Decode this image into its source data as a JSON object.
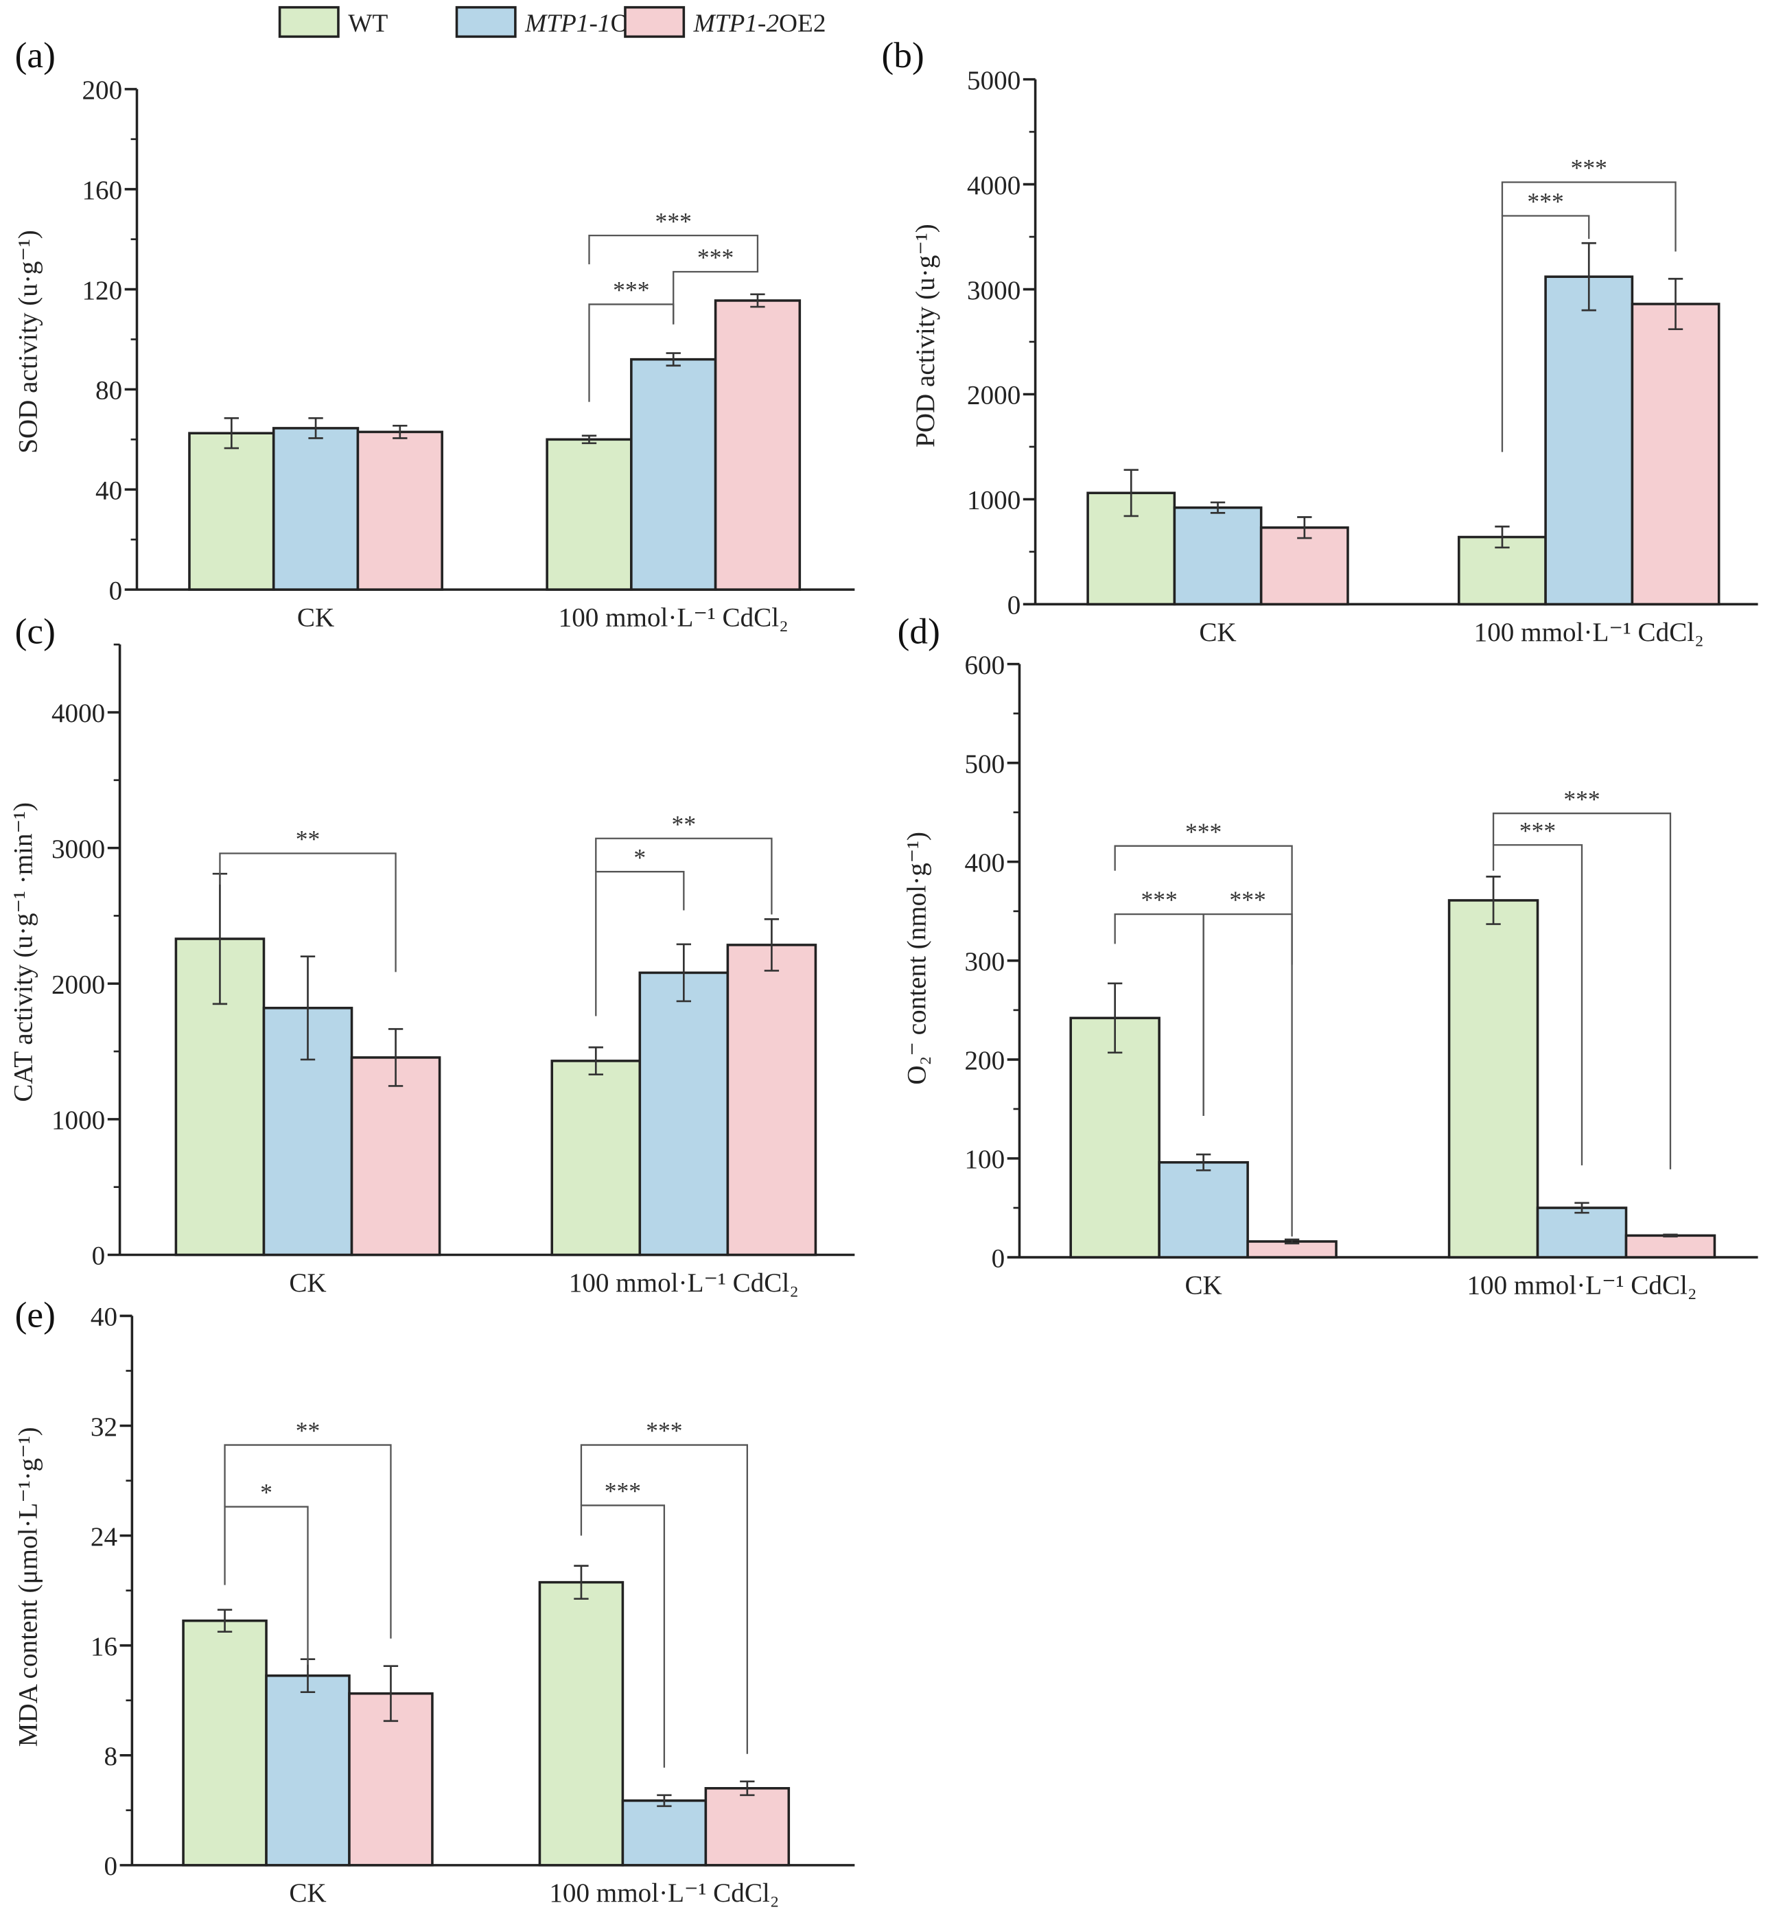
{
  "legend": [
    {
      "label_italic": "MTP1-",
      "label": "WT",
      "color": "#d9ecc8"
    },
    {
      "label_italic": "MTP1-1",
      "label": "OE3",
      "color": "#b6d6e8"
    },
    {
      "label_italic": "MTP1-2",
      "label": "OE2",
      "color": "#f5cfd2"
    }
  ],
  "chart_data": [
    {
      "panel": "(a)",
      "type": "bar",
      "categories": [
        "CK",
        "100 mmol·L⁻¹ CdCl₂"
      ],
      "ylabel": "SOD activity (u·g⁻¹)",
      "ylim": [
        0,
        200
      ],
      "yticks": [
        0,
        40,
        80,
        120,
        160,
        200
      ],
      "minor_step": 20,
      "series": [
        {
          "name": "WT",
          "values": [
            62.5,
            60
          ],
          "errors": [
            6,
            1.5
          ]
        },
        {
          "name": "MTP1-1OE3",
          "values": [
            64.5,
            92
          ],
          "errors": [
            4,
            2.5
          ]
        },
        {
          "name": "MTP1-2OE2",
          "values": [
            63,
            115.5
          ],
          "errors": [
            2.5,
            2.5
          ]
        }
      ],
      "significance": [
        {
          "group": 1,
          "from": 0,
          "to": 1,
          "level": 114,
          "left_end": 75,
          "right_end": 106,
          "label": "***"
        },
        {
          "group": 1,
          "from": 1,
          "to": 2,
          "level": 127,
          "left_end": 106,
          "right_end": 131,
          "label": "***"
        },
        {
          "group": 1,
          "from": 0,
          "to": 2,
          "level": 141.5,
          "left_end": 130,
          "right_end": 131,
          "label": "***"
        }
      ]
    },
    {
      "panel": "(b)",
      "type": "bar",
      "categories": [
        "CK",
        "100 mmol·L⁻¹ CdCl₂"
      ],
      "ylabel": "POD activity (u·g⁻¹)",
      "ylim": [
        0,
        5000
      ],
      "yticks": [
        0,
        1000,
        2000,
        3000,
        4000,
        5000
      ],
      "minor_step": 500,
      "series": [
        {
          "name": "WT",
          "values": [
            1060,
            640
          ],
          "errors": [
            220,
            100
          ]
        },
        {
          "name": "MTP1-1OE3",
          "values": [
            920,
            3120
          ],
          "errors": [
            50,
            320
          ]
        },
        {
          "name": "MTP1-2OE2",
          "values": [
            730,
            2860
          ],
          "errors": [
            100,
            240
          ]
        }
      ],
      "significance": [
        {
          "group": 1,
          "from": 0,
          "to": 1,
          "level": 3700,
          "left_end": 1450,
          "right_end": 3480,
          "label": "***"
        },
        {
          "group": 1,
          "from": 0,
          "to": 2,
          "level": 4020,
          "left_end": 3700,
          "right_end": 3360,
          "label": "***"
        }
      ]
    },
    {
      "panel": "(c)",
      "type": "bar",
      "categories": [
        "CK",
        "100 mmol·L⁻¹ CdCl₂"
      ],
      "ylabel": "CAT activity (u·g⁻¹ ·min⁻¹)",
      "ylim": [
        0,
        4500
      ],
      "yticks": [
        0,
        1000,
        2000,
        3000,
        4000
      ],
      "minor_step": 500,
      "series": [
        {
          "name": "WT",
          "values": [
            2330,
            1430
          ],
          "errors": [
            480,
            100
          ]
        },
        {
          "name": "MTP1-1OE3",
          "values": [
            1820,
            2080
          ],
          "errors": [
            380,
            210
          ]
        },
        {
          "name": "MTP1-2OE2",
          "values": [
            1455,
            2285
          ],
          "errors": [
            210,
            190
          ]
        }
      ],
      "significance": [
        {
          "group": 0,
          "from": 0,
          "to": 2,
          "level": 2960,
          "left_end": 2730,
          "right_end": 2085,
          "label": "**"
        },
        {
          "group": 1,
          "from": 0,
          "to": 1,
          "level": 2825,
          "left_end": 1760,
          "right_end": 2540,
          "label": "*"
        },
        {
          "group": 1,
          "from": 0,
          "to": 2,
          "level": 3070,
          "left_end": 2825,
          "right_end": 2510,
          "label": "**"
        }
      ]
    },
    {
      "panel": "(d)",
      "type": "bar",
      "categories": [
        "CK",
        "100 mmol·L⁻¹ CdCl₂"
      ],
      "ylabel": "O₂⁻ content (nmol·g⁻¹)",
      "ylim": [
        0,
        600
      ],
      "yticks": [
        0,
        100,
        200,
        300,
        400,
        500,
        600
      ],
      "minor_step": 50,
      "series": [
        {
          "name": "WT",
          "values": [
            242,
            361
          ],
          "errors": [
            35,
            24
          ]
        },
        {
          "name": "MTP1-1OE3",
          "values": [
            96,
            50
          ],
          "errors": [
            8,
            5
          ]
        },
        {
          "name": "MTP1-2OE2",
          "values": [
            16,
            22
          ],
          "errors": [
            2,
            1
          ]
        }
      ],
      "significance": [
        {
          "group": 0,
          "from": 0,
          "to": 1,
          "level": 347,
          "left_end": 317,
          "right_end": 143,
          "label": "***"
        },
        {
          "group": 0,
          "from": 1,
          "to": 2,
          "level": 347,
          "left_end": 143,
          "right_end": 21,
          "label": "***"
        },
        {
          "group": 0,
          "from": 0,
          "to": 2,
          "level": 416,
          "left_end": 391,
          "right_end": 296,
          "label": "***"
        },
        {
          "group": 1,
          "from": 0,
          "to": 1,
          "level": 417,
          "left_end": 391,
          "right_end": 93,
          "label": "***"
        },
        {
          "group": 1,
          "from": 0,
          "to": 2,
          "level": 449,
          "left_end": 417,
          "right_end": 89,
          "label": "***"
        }
      ]
    },
    {
      "panel": "(e)",
      "type": "bar",
      "categories": [
        "CK",
        "100 mmol·L⁻¹ CdCl₂"
      ],
      "ylabel": "MDA content (μmol·L⁻¹·g⁻¹)",
      "ylim": [
        0,
        40
      ],
      "yticks": [
        0,
        8,
        16,
        24,
        32,
        40
      ],
      "minor_step": 4,
      "series": [
        {
          "name": "WT",
          "values": [
            17.8,
            20.6
          ],
          "errors": [
            0.8,
            1.2
          ]
        },
        {
          "name": "MTP1-1OE3",
          "values": [
            13.8,
            4.7
          ],
          "errors": [
            1.2,
            0.4
          ]
        },
        {
          "name": "MTP1-2OE2",
          "values": [
            12.5,
            5.6
          ],
          "errors": [
            2,
            0.5
          ]
        }
      ],
      "significance": [
        {
          "group": 0,
          "from": 0,
          "to": 1,
          "level": 26.1,
          "left_end": 20.4,
          "right_end": 14.6,
          "label": "*"
        },
        {
          "group": 0,
          "from": 0,
          "to": 2,
          "level": 30.6,
          "left_end": 26.1,
          "right_end": 16.5,
          "label": "**"
        },
        {
          "group": 1,
          "from": 0,
          "to": 1,
          "level": 26.2,
          "left_end": 24,
          "right_end": 7.1,
          "label": "***"
        },
        {
          "group": 1,
          "from": 0,
          "to": 2,
          "level": 30.6,
          "left_end": 26.2,
          "right_end": 8.1,
          "label": "***"
        }
      ]
    }
  ]
}
